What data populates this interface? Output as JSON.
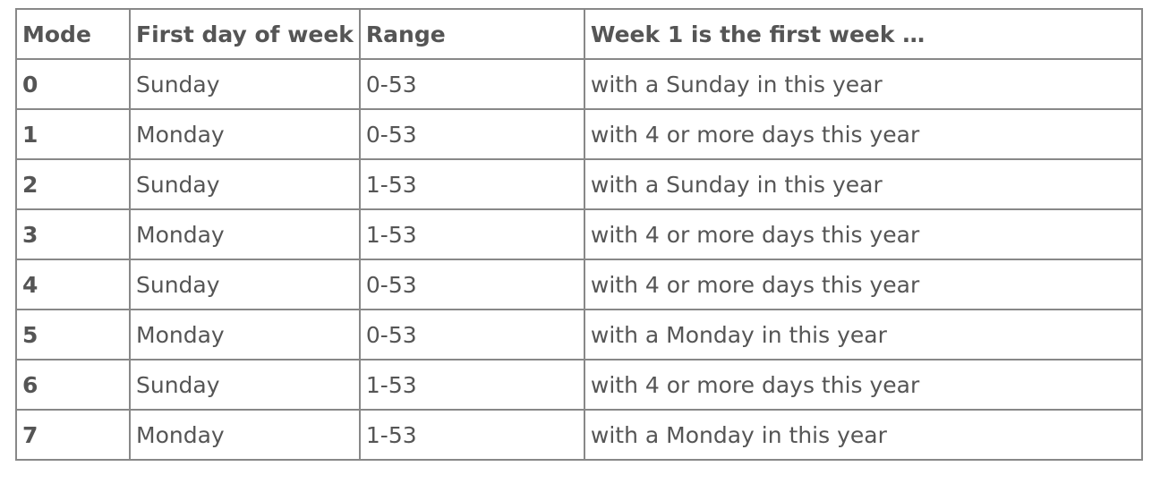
{
  "headers": [
    "Mode",
    "First day of week",
    "Range",
    "Week 1 is the first week …"
  ],
  "rows": [
    [
      "0",
      "Sunday",
      "0-53",
      "with a Sunday in this year"
    ],
    [
      "1",
      "Monday",
      "0-53",
      "with 4 or more days this year"
    ],
    [
      "2",
      "Sunday",
      "1-53",
      "with a Sunday in this year"
    ],
    [
      "3",
      "Monday",
      "1-53",
      "with 4 or more days this year"
    ],
    [
      "4",
      "Sunday",
      "0-53",
      "with 4 or more days this year"
    ],
    [
      "5",
      "Monday",
      "0-53",
      "with a Monday in this year"
    ],
    [
      "6",
      "Sunday",
      "1-53",
      "with 4 or more days this year"
    ],
    [
      "7",
      "Monday",
      "1-53",
      "with a Monday in this year"
    ]
  ]
}
